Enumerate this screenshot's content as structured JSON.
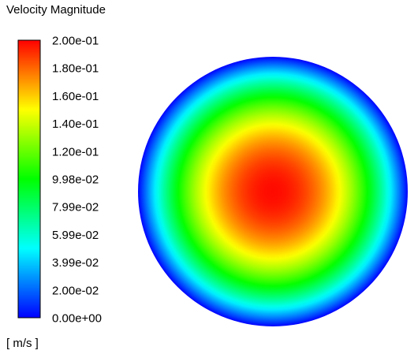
{
  "chart_data": {
    "type": "heatmap",
    "title": "Velocity Magnitude",
    "unit_label": "[ m/s ]",
    "colorbar": {
      "min": 0.0,
      "max": 0.2,
      "tick_values": [
        0.2,
        0.18,
        0.16,
        0.14,
        0.12,
        0.0998,
        0.0799,
        0.0599,
        0.0399,
        0.02,
        0.0
      ],
      "tick_labels": [
        "2.00e-01",
        "1.80e-01",
        "1.60e-01",
        "1.40e-01",
        "1.20e-01",
        "9.98e-02",
        "7.99e-02",
        "5.99e-02",
        "3.99e-02",
        "2.00e-02",
        "0.00e+00"
      ],
      "colormap": [
        "#0000ff",
        "#00ffff",
        "#00ff00",
        "#ffff00",
        "#ff0000"
      ]
    },
    "field": {
      "shape": "circle",
      "center_value": 0.2,
      "edge_value": 0.0,
      "profile": "parabolic"
    }
  }
}
